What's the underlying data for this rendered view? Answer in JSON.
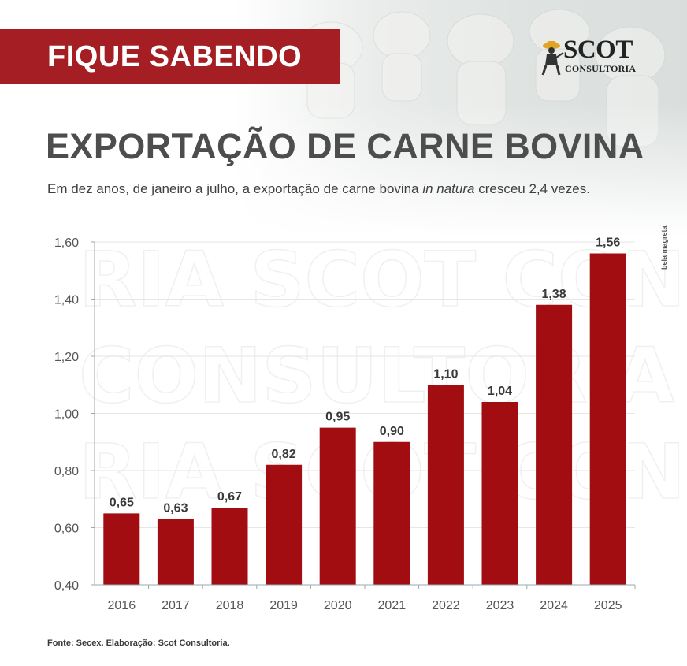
{
  "banner": {
    "label": "FIQUE SABENDO"
  },
  "logo": {
    "name": "SCOT",
    "sub": "CONSULTORIA"
  },
  "header": {
    "title": "EXPORTAÇÃO DE CARNE BOVINA",
    "subtitle_before": "Em dez anos, de janeiro a julho, a exportação de carne bovina ",
    "subtitle_emph": "in natura",
    "subtitle_after": " cresceu 2,4 vezes."
  },
  "credit": "bela magreta",
  "source": "Fonte: Secex. Elaboração: Scot Consultoria.",
  "colors": {
    "bar": "#a10d10",
    "banner": "#a51e23",
    "title": "#4d4d4d",
    "axis": "#9aa8b5"
  },
  "icons": {
    "hero": "cattle-herd-photo",
    "logo": "cowboy-logo-icon"
  },
  "chart_data": {
    "type": "bar",
    "title": "EXPORTAÇÃO DE CARNE BOVINA",
    "categories": [
      "2016",
      "2017",
      "2018",
      "2019",
      "2020",
      "2021",
      "2022",
      "2023",
      "2024",
      "2025"
    ],
    "values": [
      0.65,
      0.63,
      0.67,
      0.82,
      0.95,
      0.9,
      1.1,
      1.04,
      1.38,
      1.56
    ],
    "value_labels": [
      "0,65",
      "0,63",
      "0,67",
      "0,82",
      "0,95",
      "0,90",
      "1,10",
      "1,04",
      "1,38",
      "1,56"
    ],
    "y_ticks": [
      0.4,
      0.6,
      0.8,
      1.0,
      1.2,
      1.4,
      1.6
    ],
    "y_tick_labels": [
      "0,40",
      "0,60",
      "0,80",
      "1,00",
      "1,20",
      "1,40",
      "1,60"
    ],
    "ylim": [
      0.4,
      1.6
    ],
    "grid": true,
    "legend": "none",
    "xlabel": "",
    "ylabel": ""
  }
}
